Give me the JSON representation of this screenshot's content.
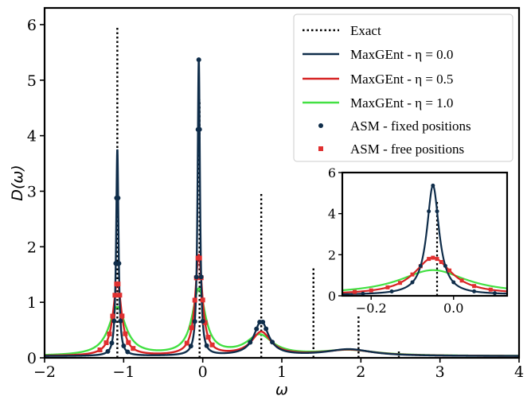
{
  "chart_data": {
    "type": "line",
    "xlabel": "ω",
    "ylabel": "D(ω)",
    "xlim": [
      -2,
      4
    ],
    "ylim": [
      0,
      6.3
    ],
    "xticks": [
      "−2",
      "−1",
      "0",
      "1",
      "2",
      "3",
      "4"
    ],
    "yticks": [
      "0",
      "1",
      "2",
      "3",
      "4",
      "5",
      "6"
    ],
    "legend_position": "top-right",
    "colors": {
      "exact": "#000000",
      "eta0": "#0f2d4a",
      "eta05": "#d62222",
      "eta1": "#43e043",
      "asm_fixed": "#0f2d4a",
      "asm_free": "#e03030"
    },
    "exact_peaks": [
      {
        "x": -1.08,
        "y": 5.95
      },
      {
        "x": -0.04,
        "y": 4.65
      },
      {
        "x": 0.74,
        "y": 2.95
      },
      {
        "x": 1.4,
        "y": 1.65
      },
      {
        "x": 1.97,
        "y": 0.75
      },
      {
        "x": 2.48,
        "y": 0.12
      }
    ],
    "peaks": {
      "eta0": [
        {
          "c": -1.08,
          "a": 3.72,
          "w": 0.018
        },
        {
          "c": -0.05,
          "a": 5.32,
          "w": 0.018
        },
        {
          "c": 0.74,
          "a": 0.62,
          "w": 0.11
        },
        {
          "c": 1.85,
          "a": 0.12,
          "w": 0.35
        }
      ],
      "eta05": [
        {
          "c": -1.08,
          "a": 1.32,
          "w": 0.065
        },
        {
          "c": -0.05,
          "a": 1.8,
          "w": 0.055
        },
        {
          "c": 0.74,
          "a": 0.42,
          "w": 0.15
        },
        {
          "c": 1.85,
          "a": 0.11,
          "w": 0.38
        }
      ],
      "eta1": [
        {
          "c": -1.08,
          "a": 0.87,
          "w": 0.13
        },
        {
          "c": -0.05,
          "a": 1.18,
          "w": 0.1
        },
        {
          "c": 0.72,
          "a": 0.36,
          "w": 0.2
        },
        {
          "c": 1.85,
          "a": 0.1,
          "w": 0.42
        }
      ]
    },
    "baseline": 0.03,
    "asm_fixed_x": [
      -1.2,
      -1.15,
      -1.12,
      -1.1,
      -1.09,
      -1.07,
      -1.06,
      -1.04,
      -1.0,
      -0.95,
      -0.15,
      -0.1,
      -0.08,
      -0.06,
      -0.05,
      -0.04,
      -0.02,
      0.0,
      0.05,
      0.6,
      0.68,
      0.72,
      0.76,
      0.8,
      0.88
    ],
    "asm_free_x": [
      -1.3,
      -1.22,
      -1.18,
      -1.14,
      -1.11,
      -1.09,
      -1.07,
      -1.05,
      -1.02,
      -0.98,
      -0.94,
      -0.88,
      -0.2,
      -0.14,
      -0.1,
      -0.08,
      -0.06,
      -0.04,
      -0.02,
      0.0,
      0.03,
      0.07,
      0.12
    ],
    "series": [
      {
        "name": "Exact"
      },
      {
        "name": "MaxGEnt - η = 0.0"
      },
      {
        "name": "MaxGEnt - η = 0.5"
      },
      {
        "name": "MaxGEnt - η = 1.0"
      },
      {
        "name": "ASM - fixed positions"
      },
      {
        "name": "ASM - free positions"
      }
    ],
    "inset": {
      "xlim": [
        -0.27,
        0.13
      ],
      "ylim": [
        0,
        6
      ],
      "xticks": [
        "−0.2",
        "0.0"
      ],
      "yticks": [
        "0",
        "2",
        "4",
        "6"
      ],
      "exact_x": -0.04,
      "exact_y": 4.65
    }
  }
}
